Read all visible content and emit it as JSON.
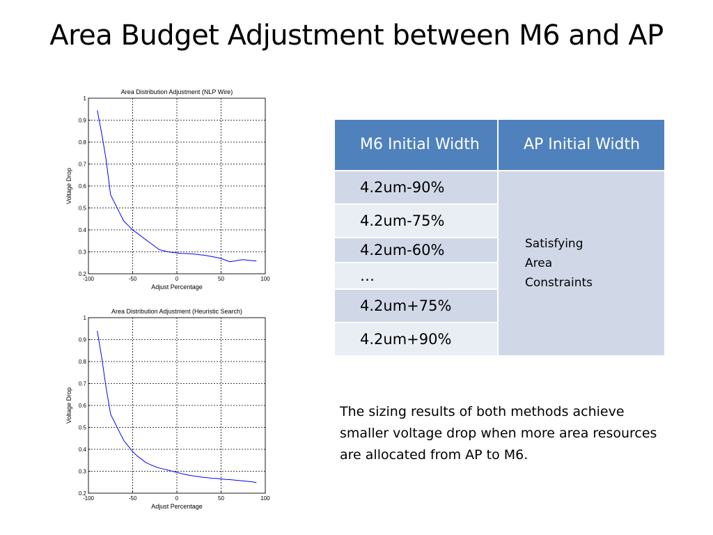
{
  "slide": {
    "title": "Area Budget Adjustment between M6 and AP",
    "note": "The sizing results of both methods achieve smaller voltage drop when more area resources are allocated from AP to M6."
  },
  "table": {
    "headers": [
      "M6 Initial Width",
      "AP Initial Width"
    ],
    "rows": [
      "4.2um-90%",
      "4.2um-75%",
      "4.2um-60%",
      "…",
      "4.2um+75%",
      "4.2um+90%"
    ],
    "merged_lines": [
      "Satisfying",
      "Area",
      "Constraints"
    ]
  },
  "chart_data": [
    {
      "type": "line",
      "title": "Area Distribution Adjustment (NLP Wire)",
      "xlabel": "Adjust Percentage",
      "ylabel": "Voltage Drop",
      "xlim": [
        -100,
        100
      ],
      "ylim": [
        0.2,
        1
      ],
      "xticks": [
        -100,
        -50,
        0,
        50,
        100
      ],
      "yticks": [
        0.2,
        0.3,
        0.4,
        0.5,
        0.6,
        0.7,
        0.8,
        0.9,
        1
      ],
      "grid": true,
      "line_color": "#0000ff",
      "x": [
        -90,
        -85,
        -80,
        -75,
        -70,
        -65,
        -60,
        -55,
        -50,
        -45,
        -40,
        -35,
        -30,
        -25,
        -20,
        -15,
        -10,
        -5,
        0,
        5,
        10,
        15,
        20,
        25,
        30,
        35,
        40,
        45,
        50,
        55,
        60,
        65,
        70,
        75,
        80,
        85,
        90
      ],
      "y": [
        0.945,
        0.84,
        0.72,
        0.56,
        0.52,
        0.48,
        0.44,
        0.42,
        0.4,
        0.385,
        0.37,
        0.355,
        0.34,
        0.325,
        0.31,
        0.305,
        0.3,
        0.297,
        0.295,
        0.293,
        0.292,
        0.291,
        0.29,
        0.287,
        0.285,
        0.282,
        0.278,
        0.274,
        0.27,
        0.262,
        0.255,
        0.258,
        0.262,
        0.264,
        0.262,
        0.26,
        0.258
      ]
    },
    {
      "type": "line",
      "title": "Area Distribution Adjustment (Heuristic Search)",
      "xlabel": "Adjust Percentage",
      "ylabel": "Voltage Drop",
      "xlim": [
        -100,
        100
      ],
      "ylim": [
        0.2,
        1
      ],
      "xticks": [
        -100,
        -50,
        0,
        50,
        100
      ],
      "yticks": [
        0.2,
        0.3,
        0.4,
        0.5,
        0.6,
        0.7,
        0.8,
        0.9,
        1
      ],
      "grid": true,
      "line_color": "#0000ff",
      "x": [
        -90,
        -85,
        -80,
        -75,
        -70,
        -65,
        -60,
        -55,
        -50,
        -45,
        -40,
        -35,
        -30,
        -25,
        -20,
        -15,
        -10,
        -5,
        0,
        5,
        10,
        15,
        20,
        25,
        30,
        35,
        40,
        45,
        50,
        55,
        60,
        65,
        70,
        75,
        80,
        85,
        90
      ],
      "y": [
        0.94,
        0.82,
        0.68,
        0.56,
        0.52,
        0.48,
        0.44,
        0.415,
        0.39,
        0.37,
        0.355,
        0.34,
        0.33,
        0.322,
        0.315,
        0.31,
        0.305,
        0.3,
        0.295,
        0.29,
        0.285,
        0.281,
        0.278,
        0.275,
        0.272,
        0.27,
        0.268,
        0.267,
        0.265,
        0.263,
        0.262,
        0.26,
        0.258,
        0.256,
        0.254,
        0.252,
        0.248
      ]
    }
  ]
}
